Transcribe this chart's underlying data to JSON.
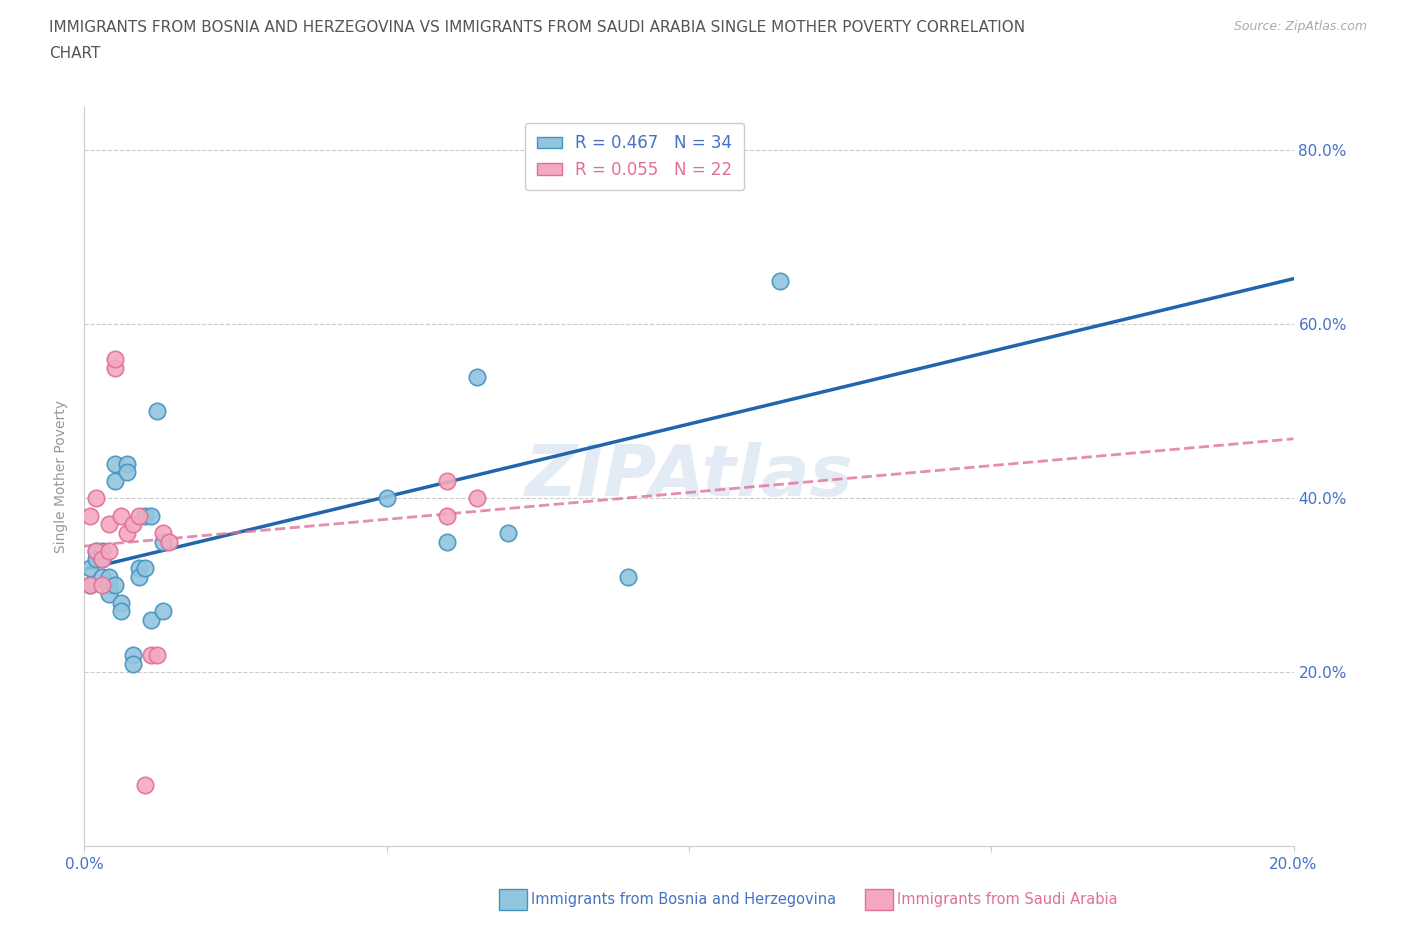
{
  "title_line1": "IMMIGRANTS FROM BOSNIA AND HERZEGOVINA VS IMMIGRANTS FROM SAUDI ARABIA SINGLE MOTHER POVERTY CORRELATION",
  "title_line2": "CHART",
  "source": "Source: ZipAtlas.com",
  "ylabel": "Single Mother Poverty",
  "xlim": [
    0.0,
    0.2
  ],
  "ylim": [
    0.0,
    0.85
  ],
  "yticks": [
    0.0,
    0.2,
    0.4,
    0.6,
    0.8
  ],
  "xticks": [
    0.0,
    0.05,
    0.1,
    0.15,
    0.2
  ],
  "xtick_labels_show": [
    "0.0%",
    "",
    "",
    "",
    "20.0%"
  ],
  "ytick_labels_right": [
    "",
    "20.0%",
    "40.0%",
    "60.0%",
    "80.0%"
  ],
  "bosnia_color": "#92c5de",
  "bosnia_edge_color": "#4393c3",
  "saudi_color": "#f4a9c0",
  "saudi_edge_color": "#e07098",
  "bosnia_R": 0.467,
  "bosnia_N": 34,
  "saudi_R": 0.055,
  "saudi_N": 22,
  "watermark": "ZIPAtlas",
  "bosnia_x": [
    0.001,
    0.001,
    0.002,
    0.002,
    0.003,
    0.003,
    0.003,
    0.004,
    0.004,
    0.004,
    0.005,
    0.005,
    0.005,
    0.006,
    0.006,
    0.007,
    0.007,
    0.008,
    0.008,
    0.009,
    0.009,
    0.01,
    0.01,
    0.011,
    0.011,
    0.012,
    0.013,
    0.013,
    0.05,
    0.06,
    0.065,
    0.07,
    0.09,
    0.115
  ],
  "bosnia_y": [
    0.32,
    0.3,
    0.33,
    0.34,
    0.34,
    0.33,
    0.31,
    0.3,
    0.29,
    0.31,
    0.44,
    0.42,
    0.3,
    0.28,
    0.27,
    0.44,
    0.43,
    0.22,
    0.21,
    0.32,
    0.31,
    0.32,
    0.38,
    0.38,
    0.26,
    0.5,
    0.35,
    0.27,
    0.4,
    0.35,
    0.54,
    0.36,
    0.31,
    0.65
  ],
  "saudi_x": [
    0.001,
    0.001,
    0.002,
    0.002,
    0.003,
    0.003,
    0.004,
    0.004,
    0.005,
    0.005,
    0.006,
    0.007,
    0.008,
    0.009,
    0.01,
    0.011,
    0.012,
    0.013,
    0.014,
    0.06,
    0.06,
    0.065
  ],
  "saudi_y": [
    0.3,
    0.38,
    0.34,
    0.4,
    0.3,
    0.33,
    0.34,
    0.37,
    0.55,
    0.56,
    0.38,
    0.36,
    0.37,
    0.38,
    0.07,
    0.22,
    0.22,
    0.36,
    0.35,
    0.38,
    0.42,
    0.4
  ],
  "title_fontsize": 11,
  "axis_label_fontsize": 10,
  "tick_fontsize": 11,
  "legend_fontsize": 12,
  "axis_color": "#4472c4",
  "saudi_text_color": "#e07098",
  "title_color": "#555555",
  "background_color": "#ffffff",
  "regression_blue": "#2166ac",
  "regression_pink": "#e07098",
  "grid_color": "#cccccc",
  "spine_color": "#cccccc"
}
